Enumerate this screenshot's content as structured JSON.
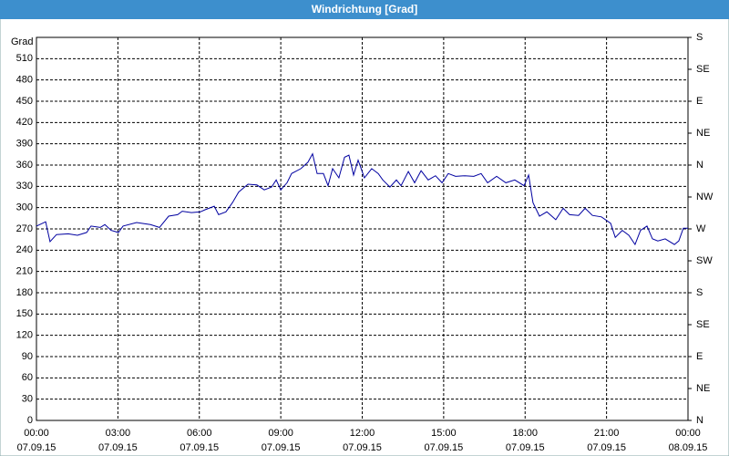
{
  "chart_data": {
    "type": "line",
    "title": "Windrichtung [Grad]",
    "y_label": "Grad",
    "x": [
      0,
      0.34,
      0.5,
      0.74,
      1.17,
      1.51,
      1.85,
      2.01,
      2.35,
      2.52,
      2.75,
      3.02,
      3.19,
      3.69,
      4.2,
      4.53,
      4.87,
      5.2,
      5.37,
      5.71,
      6.04,
      6.21,
      6.55,
      6.71,
      6.98,
      7.22,
      7.45,
      7.79,
      8.12,
      8.39,
      8.66,
      8.83,
      9.0,
      9.23,
      9.4,
      9.74,
      10.0,
      10.17,
      10.34,
      10.57,
      10.74,
      10.91,
      11.14,
      11.35,
      11.51,
      11.68,
      11.85,
      12.08,
      12.35,
      12.59,
      12.76,
      13.02,
      13.26,
      13.43,
      13.7,
      13.93,
      14.17,
      14.43,
      14.7,
      14.94,
      15.17,
      15.44,
      15.78,
      16.11,
      16.38,
      16.62,
      16.95,
      17.29,
      17.62,
      17.96,
      18.13,
      18.29,
      18.53,
      18.8,
      19.13,
      19.4,
      19.64,
      19.97,
      20.21,
      20.48,
      20.81,
      21.15,
      21.32,
      21.58,
      21.82,
      22.05,
      22.25,
      22.49,
      22.69,
      22.89,
      23.16,
      23.5,
      23.66,
      23.83,
      24
    ],
    "series": [
      {
        "color": "#0000a0",
        "values": [
          274,
          280,
          252,
          262,
          263,
          261,
          265,
          274,
          272,
          276,
          268,
          265,
          274,
          279,
          276,
          272,
          288,
          290,
          295,
          293,
          294,
          297,
          302,
          290,
          294,
          307,
          322,
          333,
          332,
          325,
          329,
          339,
          325,
          335,
          348,
          355,
          364,
          376,
          348,
          348,
          331,
          355,
          342,
          371,
          374,
          346,
          367,
          342,
          355,
          348,
          339,
          329,
          339,
          331,
          351,
          335,
          352,
          339,
          345,
          335,
          348,
          344,
          345,
          344,
          348,
          335,
          344,
          335,
          339,
          331,
          346,
          307,
          288,
          294,
          283,
          299,
          290,
          289,
          299,
          289,
          287,
          278,
          258,
          268,
          261,
          248,
          268,
          274,
          256,
          253,
          256,
          248,
          253,
          271,
          271
        ]
      }
    ],
    "xlim": [
      0,
      24
    ],
    "xticks": [
      {
        "value": 0,
        "label": "00:00"
      },
      {
        "value": 3,
        "label": "03:00"
      },
      {
        "value": 6,
        "label": "06:00"
      },
      {
        "value": 9,
        "label": "09:00"
      },
      {
        "value": 12,
        "label": "12:00"
      },
      {
        "value": 15,
        "label": "15:00"
      },
      {
        "value": 18,
        "label": "18:00"
      },
      {
        "value": 21,
        "label": "21:00"
      },
      {
        "value": 24,
        "label": "00:00"
      }
    ],
    "xtick_dates": [
      "07.09.15",
      "07.09.15",
      "07.09.15",
      "07.09.15",
      "07.09.15",
      "07.09.15",
      "07.09.15",
      "07.09.15",
      "08.09.15"
    ],
    "ylim": [
      0,
      540
    ],
    "yticks": [
      0,
      30,
      60,
      90,
      120,
      150,
      180,
      210,
      240,
      270,
      300,
      330,
      360,
      390,
      420,
      450,
      480,
      510
    ],
    "y2lim": [
      0,
      540
    ],
    "y2ticks": [
      {
        "value": 0,
        "label": "N"
      },
      {
        "value": 45,
        "label": "NE"
      },
      {
        "value": 90,
        "label": "E"
      },
      {
        "value": 135,
        "label": "SE"
      },
      {
        "value": 180,
        "label": "S"
      },
      {
        "value": 225,
        "label": "SW"
      },
      {
        "value": 270,
        "label": "W"
      },
      {
        "value": 315,
        "label": "NW"
      },
      {
        "value": 360,
        "label": "N"
      },
      {
        "value": 405,
        "label": "NE"
      },
      {
        "value": 450,
        "label": "E"
      },
      {
        "value": 495,
        "label": "SE"
      },
      {
        "value": 540,
        "label": "S"
      }
    ],
    "grid": true
  }
}
